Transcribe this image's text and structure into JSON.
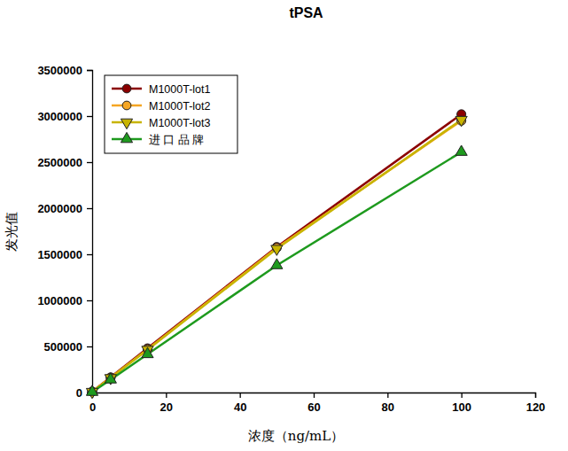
{
  "chart_data": {
    "type": "line",
    "title": "tPSA",
    "x_label": "浓度（ng/mL）",
    "y_label": "发光值",
    "x": [
      0,
      5,
      15,
      50,
      100
    ],
    "series": [
      {
        "name": "M1000T-lot1",
        "color": "#8b0000",
        "marker": "circle",
        "values": [
          10000,
          165000,
          480000,
          1580000,
          3020000
        ]
      },
      {
        "name": "M1000T-lot2",
        "color": "#f5a623",
        "marker": "circle",
        "values": [
          10000,
          160000,
          470000,
          1570000,
          2950000
        ]
      },
      {
        "name": "M1000T-lot3",
        "color": "#c8b400",
        "marker": "triangle-down",
        "values": [
          8000,
          158000,
          465000,
          1560000,
          2960000
        ]
      },
      {
        "name": "进 口 品 牌",
        "color": "#1e9a1e",
        "marker": "triangle-up",
        "values": [
          5000,
          140000,
          415000,
          1380000,
          2610000
        ]
      }
    ],
    "xlim": [
      0,
      120
    ],
    "xticks": [
      0,
      20,
      40,
      60,
      80,
      100,
      120
    ],
    "ylim": [
      0,
      3500000
    ],
    "yticks": [
      0,
      500000,
      1000000,
      1500000,
      2000000,
      2500000,
      3000000,
      3500000
    ],
    "legend": "upper left",
    "grid": false
  }
}
